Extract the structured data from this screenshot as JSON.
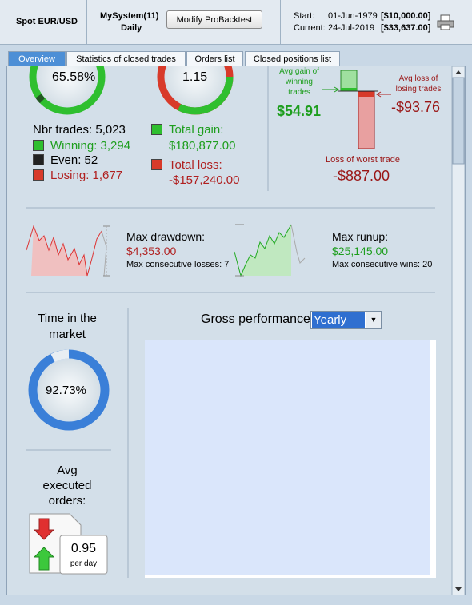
{
  "header": {
    "instrument": "Spot EUR/USD",
    "system": "MySystem(11)",
    "period": "Daily",
    "button": "Modify ProBacktest",
    "start_label": "Start:",
    "start_date": "01-Jun-1979",
    "start_value": "[$10,000.00]",
    "current_label": "Current:",
    "current_date": "24-Jul-2019",
    "current_value": "[$33,637.00]"
  },
  "tabs": [
    "Overview",
    "Statistics of closed trades",
    "Orders list",
    "Closed positions list"
  ],
  "overview": {
    "winning_pct": "65.58%",
    "gain_loss_ratio": "1.15",
    "nbr_trades": "Nbr trades: 5,023",
    "winning": "Winning: 3,294",
    "even": "Even: 52",
    "losing": "Losing: 1,677",
    "total_gain_label": "Total gain:",
    "total_gain": "$180,877.00",
    "total_loss_label": "Total loss:",
    "total_loss": "-$157,240.00",
    "avg_gain_label": [
      "Avg gain of",
      "winning",
      "trades"
    ],
    "avg_gain": "$54.91",
    "avg_loss_label": [
      "Avg loss of",
      "losing trades"
    ],
    "avg_loss": "-$93.76",
    "worst_label": "Loss of worst trade",
    "worst": "-$887.00",
    "drawdown_label": "Max drawdown:",
    "drawdown": "$4,353.00",
    "consecutive_losses": "Max consecutive losses: 7",
    "runup_label": "Max runup:",
    "runup": "$25,145.00",
    "consecutive_wins": "Max consecutive wins: 20",
    "time_label": [
      "Time in the",
      "market"
    ],
    "time_value": "92.73%",
    "orders_label": [
      "Avg",
      "executed",
      "orders:"
    ],
    "orders_value": "0.95",
    "orders_unit": "per day",
    "gross_label": "Gross performance",
    "gross_select": "Yearly"
  }
}
